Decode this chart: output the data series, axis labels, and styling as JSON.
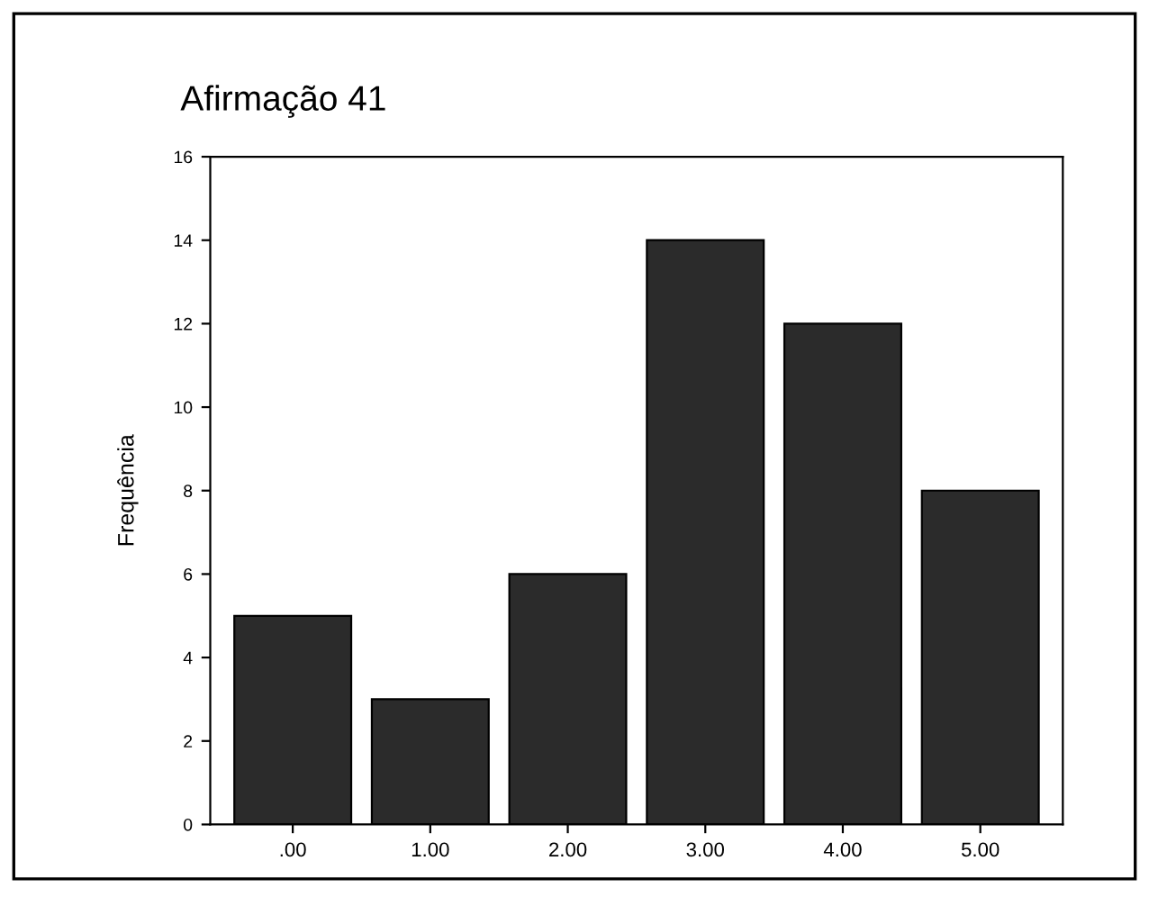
{
  "chart_data": {
    "type": "bar",
    "title": "Afirmação 41",
    "ylabel": "Frequência",
    "categories": [
      ".00",
      "1.00",
      "2.00",
      "3.00",
      "4.00",
      "5.00"
    ],
    "values": [
      5,
      3,
      6,
      14,
      12,
      8
    ],
    "color": "#2b2b2b",
    "ylim": [
      0,
      16
    ],
    "yticks": [
      0,
      2,
      4,
      6,
      8,
      10,
      12,
      14,
      16
    ],
    "grid": false,
    "legend": false
  }
}
